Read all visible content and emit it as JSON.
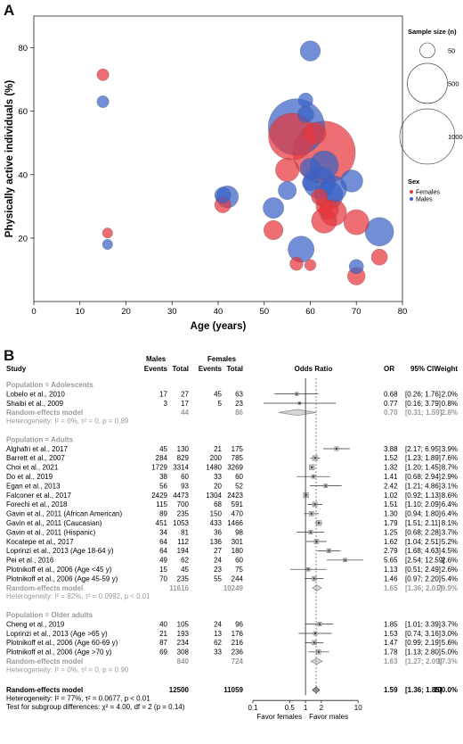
{
  "panel_a": {
    "label": "A",
    "chart_data": {
      "type": "scatter",
      "xlabel": "Age (years)",
      "ylabel": "Physically active individuals (%)",
      "xlim": [
        0,
        80
      ],
      "ylim": [
        0,
        90
      ],
      "xticks": [
        "0",
        "10",
        "20",
        "30",
        "40",
        "50",
        "60",
        "70",
        "80"
      ],
      "yticks": [
        "20",
        "40",
        "60",
        "80"
      ],
      "x_tick_values": [
        0,
        10,
        20,
        30,
        40,
        50,
        60,
        70,
        80
      ],
      "y_tick_values": [
        20,
        40,
        60,
        80
      ],
      "grid": false,
      "legend_placement": "right",
      "size_legend": {
        "title": "Sample size (n)",
        "values": [
          50,
          500,
          1000
        ],
        "labels": [
          "50",
          "500",
          "1000"
        ]
      },
      "color_legend": {
        "title": "Sex",
        "labels": [
          "Females",
          "Males"
        ],
        "colors": [
          "#e8383d",
          "#3a63c6"
        ]
      },
      "series": [
        {
          "name": "Females",
          "color": "#e8383d",
          "points": [
            {
              "x": 15,
              "y": 71.5,
              "n": 27
            },
            {
              "x": 16,
              "y": 21.6,
              "n": 17
            },
            {
              "x": 41,
              "y": 30.5,
              "n": 60
            },
            {
              "x": 52,
              "y": 22.5,
              "n": 93
            },
            {
              "x": 55,
              "y": 41.5,
              "n": 150
            },
            {
              "x": 56,
              "y": 52,
              "n": 700
            },
            {
              "x": 57,
              "y": 11.9,
              "n": 36
            },
            {
              "x": 60,
              "y": 11.5,
              "n": 23
            },
            {
              "x": 61,
              "y": 53,
              "n": 130
            },
            {
              "x": 62,
              "y": 33,
              "n": 60
            },
            {
              "x": 63,
              "y": 25.5,
              "n": 176
            },
            {
              "x": 63,
              "y": 47,
              "n": 1304
            },
            {
              "x": 63,
              "y": 30,
              "n": 62
            },
            {
              "x": 64,
              "y": 29,
              "n": 96
            },
            {
              "x": 65,
              "y": 28,
              "n": 200
            },
            {
              "x": 70,
              "y": 25,
              "n": 175
            },
            {
              "x": 70,
              "y": 8,
              "n": 75
            },
            {
              "x": 75,
              "y": 14,
              "n": 60
            }
          ]
        },
        {
          "name": "Males",
          "color": "#3a63c6",
          "points": [
            {
              "x": 15,
              "y": 63,
              "n": 27
            },
            {
              "x": 16,
              "y": 18,
              "n": 17
            },
            {
              "x": 41,
              "y": 33.5,
              "n": 60
            },
            {
              "x": 42,
              "y": 33,
              "n": 130
            },
            {
              "x": 52,
              "y": 29.5,
              "n": 112
            },
            {
              "x": 55,
              "y": 35,
              "n": 81
            },
            {
              "x": 57,
              "y": 55,
              "n": 1053
            },
            {
              "x": 58,
              "y": 16.5,
              "n": 193
            },
            {
              "x": 59,
              "y": 63.5,
              "n": 45
            },
            {
              "x": 59,
              "y": 59,
              "n": 60
            },
            {
              "x": 60,
              "y": 79,
              "n": 105
            },
            {
              "x": 60,
              "y": 37.5,
              "n": 60
            },
            {
              "x": 60,
              "y": 42,
              "n": 105
            },
            {
              "x": 62,
              "y": 37.5,
              "n": 308
            },
            {
              "x": 63,
              "y": 43,
              "n": 235
            },
            {
              "x": 64,
              "y": 33.5,
              "n": 235
            },
            {
              "x": 65,
              "y": 35.5,
              "n": 200
            },
            {
              "x": 69,
              "y": 38,
              "n": 130
            },
            {
              "x": 70,
              "y": 11,
              "n": 45
            },
            {
              "x": 75,
              "y": 22,
              "n": 235
            }
          ]
        }
      ]
    }
  },
  "panel_b": {
    "label": "B",
    "chart_data": {
      "type": "table",
      "headers": {
        "study": "Study",
        "males_top": "Males",
        "females_top": "Females",
        "events": "Events",
        "total": "Total",
        "odds_ratio": "Odds Ratio",
        "or": "OR",
        "ci": "95% CI",
        "weight": "Weight"
      },
      "axis": {
        "scale": "log",
        "ticks": [
          0.1,
          0.5,
          1,
          2,
          10
        ],
        "tick_labels": [
          "0.1",
          "0.5",
          "1",
          "2",
          "10"
        ],
        "favor_left": "Favor females",
        "favor_right": "Favor males"
      },
      "overall_or": 1.59,
      "groups": [
        {
          "title": "Population = Adolescents",
          "studies": [
            {
              "name": "Lobelo et al., 2010",
              "m_events": "17",
              "m_total": "27",
              "f_events": "45",
              "f_total": "63",
              "or_text": "0.68",
              "ci_text": "[0.26; 1.76]",
              "weight": "2.0%",
              "or": 0.68,
              "lo": 0.26,
              "hi": 1.76,
              "w": 2.0
            },
            {
              "name": "Shaibi et al., 2009",
              "m_events": "3",
              "m_total": "17",
              "f_events": "5",
              "f_total": "23",
              "or_text": "0.77",
              "ci_text": "[0.16; 3.79]",
              "weight": "0.8%",
              "or": 0.77,
              "lo": 0.16,
              "hi": 3.79,
              "w": 0.8
            }
          ],
          "model": {
            "label": "Random-effects model",
            "m_total": "44",
            "f_total": "86",
            "or_text": "0.70",
            "ci_text": "[0.31; 1.59]",
            "weight": "2.8%",
            "or": 0.7,
            "lo": 0.31,
            "hi": 1.59
          },
          "heterogeneity": "Heterogeneity: I² = 0%, τ² = 0, p = 0.89"
        },
        {
          "title": "Population = Adults",
          "studies": [
            {
              "name": "Alghafri et al., 2017",
              "m_events": "45",
              "m_total": "130",
              "f_events": "21",
              "f_total": "175",
              "or_text": "3.88",
              "ci_text": "[2.17; 6.95]",
              "weight": "3.9%",
              "or": 3.88,
              "lo": 2.17,
              "hi": 6.95,
              "w": 3.9
            },
            {
              "name": "Barrett et al., 2007",
              "m_events": "284",
              "m_total": "829",
              "f_events": "200",
              "f_total": "785",
              "or_text": "1.52",
              "ci_text": "[1.23; 1.89]",
              "weight": "7.6%",
              "or": 1.52,
              "lo": 1.23,
              "hi": 1.89,
              "w": 7.6
            },
            {
              "name": "Choi et al., 2021",
              "m_events": "1729",
              "m_total": "3314",
              "f_events": "1480",
              "f_total": "3269",
              "or_text": "1.32",
              "ci_text": "[1.20; 1.45]",
              "weight": "8.7%",
              "or": 1.32,
              "lo": 1.2,
              "hi": 1.45,
              "w": 8.7
            },
            {
              "name": "Do et al., 2019",
              "m_events": "38",
              "m_total": "60",
              "f_events": "33",
              "f_total": "60",
              "or_text": "1.41",
              "ci_text": "[0.68; 2.94]",
              "weight": "2.9%",
              "or": 1.41,
              "lo": 0.68,
              "hi": 2.94,
              "w": 2.9
            },
            {
              "name": "Egan et al., 2013",
              "m_events": "56",
              "m_total": "93",
              "f_events": "20",
              "f_total": "52",
              "or_text": "2.42",
              "ci_text": "[1.21; 4.86]",
              "weight": "3.1%",
              "or": 2.42,
              "lo": 1.21,
              "hi": 4.86,
              "w": 3.1
            },
            {
              "name": "Falconer et al., 2017",
              "m_events": "2429",
              "m_total": "4473",
              "f_events": "1304",
              "f_total": "2423",
              "or_text": "1.02",
              "ci_text": "[0.92; 1.13]",
              "weight": "8.6%",
              "or": 1.02,
              "lo": 0.92,
              "hi": 1.13,
              "w": 8.6
            },
            {
              "name": "Forechi et al., 2018",
              "m_events": "115",
              "m_total": "700",
              "f_events": "68",
              "f_total": "591",
              "or_text": "1.51",
              "ci_text": "[1.10; 2.09]",
              "weight": "6.4%",
              "or": 1.51,
              "lo": 1.1,
              "hi": 2.09,
              "w": 6.4
            },
            {
              "name": "Gavin et al., 2011 (African American)",
              "m_events": "89",
              "m_total": "235",
              "f_events": "150",
              "f_total": "470",
              "or_text": "1.30",
              "ci_text": "[0.94; 1.80]",
              "weight": "6.4%",
              "or": 1.3,
              "lo": 0.94,
              "hi": 1.8,
              "w": 6.4
            },
            {
              "name": "Gavin et al., 2011 (Caucasian)",
              "m_events": "451",
              "m_total": "1053",
              "f_events": "433",
              "f_total": "1466",
              "or_text": "1.79",
              "ci_text": "[1.51; 2.11]",
              "weight": "8.1%",
              "or": 1.79,
              "lo": 1.51,
              "hi": 2.11,
              "w": 8.1
            },
            {
              "name": "Gavin et al., 2011 (Hispanic)",
              "m_events": "34",
              "m_total": "81",
              "f_events": "36",
              "f_total": "98",
              "or_text": "1.25",
              "ci_text": "[0.68; 2.28]",
              "weight": "3.7%",
              "or": 1.25,
              "lo": 0.68,
              "hi": 2.28,
              "w": 3.7
            },
            {
              "name": "Kocatepe et al., 2017",
              "m_events": "64",
              "m_total": "112",
              "f_events": "136",
              "f_total": "301",
              "or_text": "1.62",
              "ci_text": "[1.04; 2.51]",
              "weight": "5.2%",
              "or": 1.62,
              "lo": 1.04,
              "hi": 2.51,
              "w": 5.2
            },
            {
              "name": "Loprinzi et al., 2013 (Age 18-64 y)",
              "m_events": "64",
              "m_total": "194",
              "f_events": "27",
              "f_total": "180",
              "or_text": "2.79",
              "ci_text": "[1.68; 4.63]",
              "weight": "4.5%",
              "or": 2.79,
              "lo": 1.68,
              "hi": 4.63,
              "w": 4.5
            },
            {
              "name": "Pei et al., 2016",
              "m_events": "49",
              "m_total": "62",
              "f_events": "24",
              "f_total": "60",
              "or_text": "5.65",
              "ci_text": "[2.54; 12.59]",
              "weight": "2.6%",
              "or": 5.65,
              "lo": 2.54,
              "hi": 12.59,
              "w": 2.6
            },
            {
              "name": "Plotnikoff et al., 2006 (Age <45 y)",
              "m_events": "15",
              "m_total": "45",
              "f_events": "23",
              "f_total": "75",
              "or_text": "1.13",
              "ci_text": "[0.51; 2.49]",
              "weight": "2.6%",
              "or": 1.13,
              "lo": 0.51,
              "hi": 2.49,
              "w": 2.6
            },
            {
              "name": "Plotnikoff et al., 2006 (Age 45-59 y)",
              "m_events": "70",
              "m_total": "235",
              "f_events": "55",
              "f_total": "244",
              "or_text": "1.46",
              "ci_text": "[0.97; 2.20]",
              "weight": "5.4%",
              "or": 1.46,
              "lo": 0.97,
              "hi": 2.2,
              "w": 5.4
            }
          ],
          "model": {
            "label": "Random-effects model",
            "m_total": "11616",
            "f_total": "10249",
            "or_text": "1.65",
            "ci_text": "[1.36; 2.01]",
            "weight": "79.9%",
            "or": 1.65,
            "lo": 1.36,
            "hi": 2.01
          },
          "heterogeneity": "Heterogeneity: I² = 82%, τ² = 0.0992, p < 0.01"
        },
        {
          "title": "Population = Older adults",
          "studies": [
            {
              "name": "Cheng et al., 2019",
              "m_events": "40",
              "m_total": "105",
              "f_events": "24",
              "f_total": "96",
              "or_text": "1.85",
              "ci_text": "[1.01; 3.39]",
              "weight": "3.7%",
              "or": 1.85,
              "lo": 1.01,
              "hi": 3.39,
              "w": 3.7
            },
            {
              "name": "Loprinzi et al., 2013 (Age >65 y)",
              "m_events": "21",
              "m_total": "193",
              "f_events": "13",
              "f_total": "176",
              "or_text": "1.53",
              "ci_text": "[0.74; 3.16]",
              "weight": "3.0%",
              "or": 1.53,
              "lo": 0.74,
              "hi": 3.16,
              "w": 3.0
            },
            {
              "name": "Plotnikoff et al., 2006 (Age 60-69 y)",
              "m_events": "87",
              "m_total": "234",
              "f_events": "62",
              "f_total": "216",
              "or_text": "1.47",
              "ci_text": "[0.99; 2.19]",
              "weight": "5.6%",
              "or": 1.47,
              "lo": 0.99,
              "hi": 2.19,
              "w": 5.6
            },
            {
              "name": "Plotnikoff et al., 2006 (Age >70 y)",
              "m_events": "69",
              "m_total": "308",
              "f_events": "33",
              "f_total": "236",
              "or_text": "1.78",
              "ci_text": "[1.13; 2.80]",
              "weight": "5.0%",
              "or": 1.78,
              "lo": 1.13,
              "hi": 2.8,
              "w": 5.0
            }
          ],
          "model": {
            "label": "Random-effects model",
            "m_total": "840",
            "f_total": "724",
            "or_text": "1.63",
            "ci_text": "[1.27; 2.09]",
            "weight": "17.3%",
            "or": 1.63,
            "lo": 1.27,
            "hi": 2.09
          },
          "heterogeneity": "Heterogeneity: I² = 0%, τ² = 0, p = 0.90"
        }
      ],
      "overall": {
        "label": "Random-effects model",
        "m_total": "12500",
        "f_total": "11059",
        "or_text": "1.59",
        "ci_text": "[1.36; 1.85]",
        "weight": "100.0%",
        "or": 1.59,
        "lo": 1.36,
        "hi": 1.85
      },
      "overall_heterogeneity": "Heterogeneity: I² = 77%, τ² = 0.0677, p < 0.01",
      "subgroup_test": "Test for subgroup differences: χ² = 4.00, df = 2 (p = 0.14)"
    }
  }
}
